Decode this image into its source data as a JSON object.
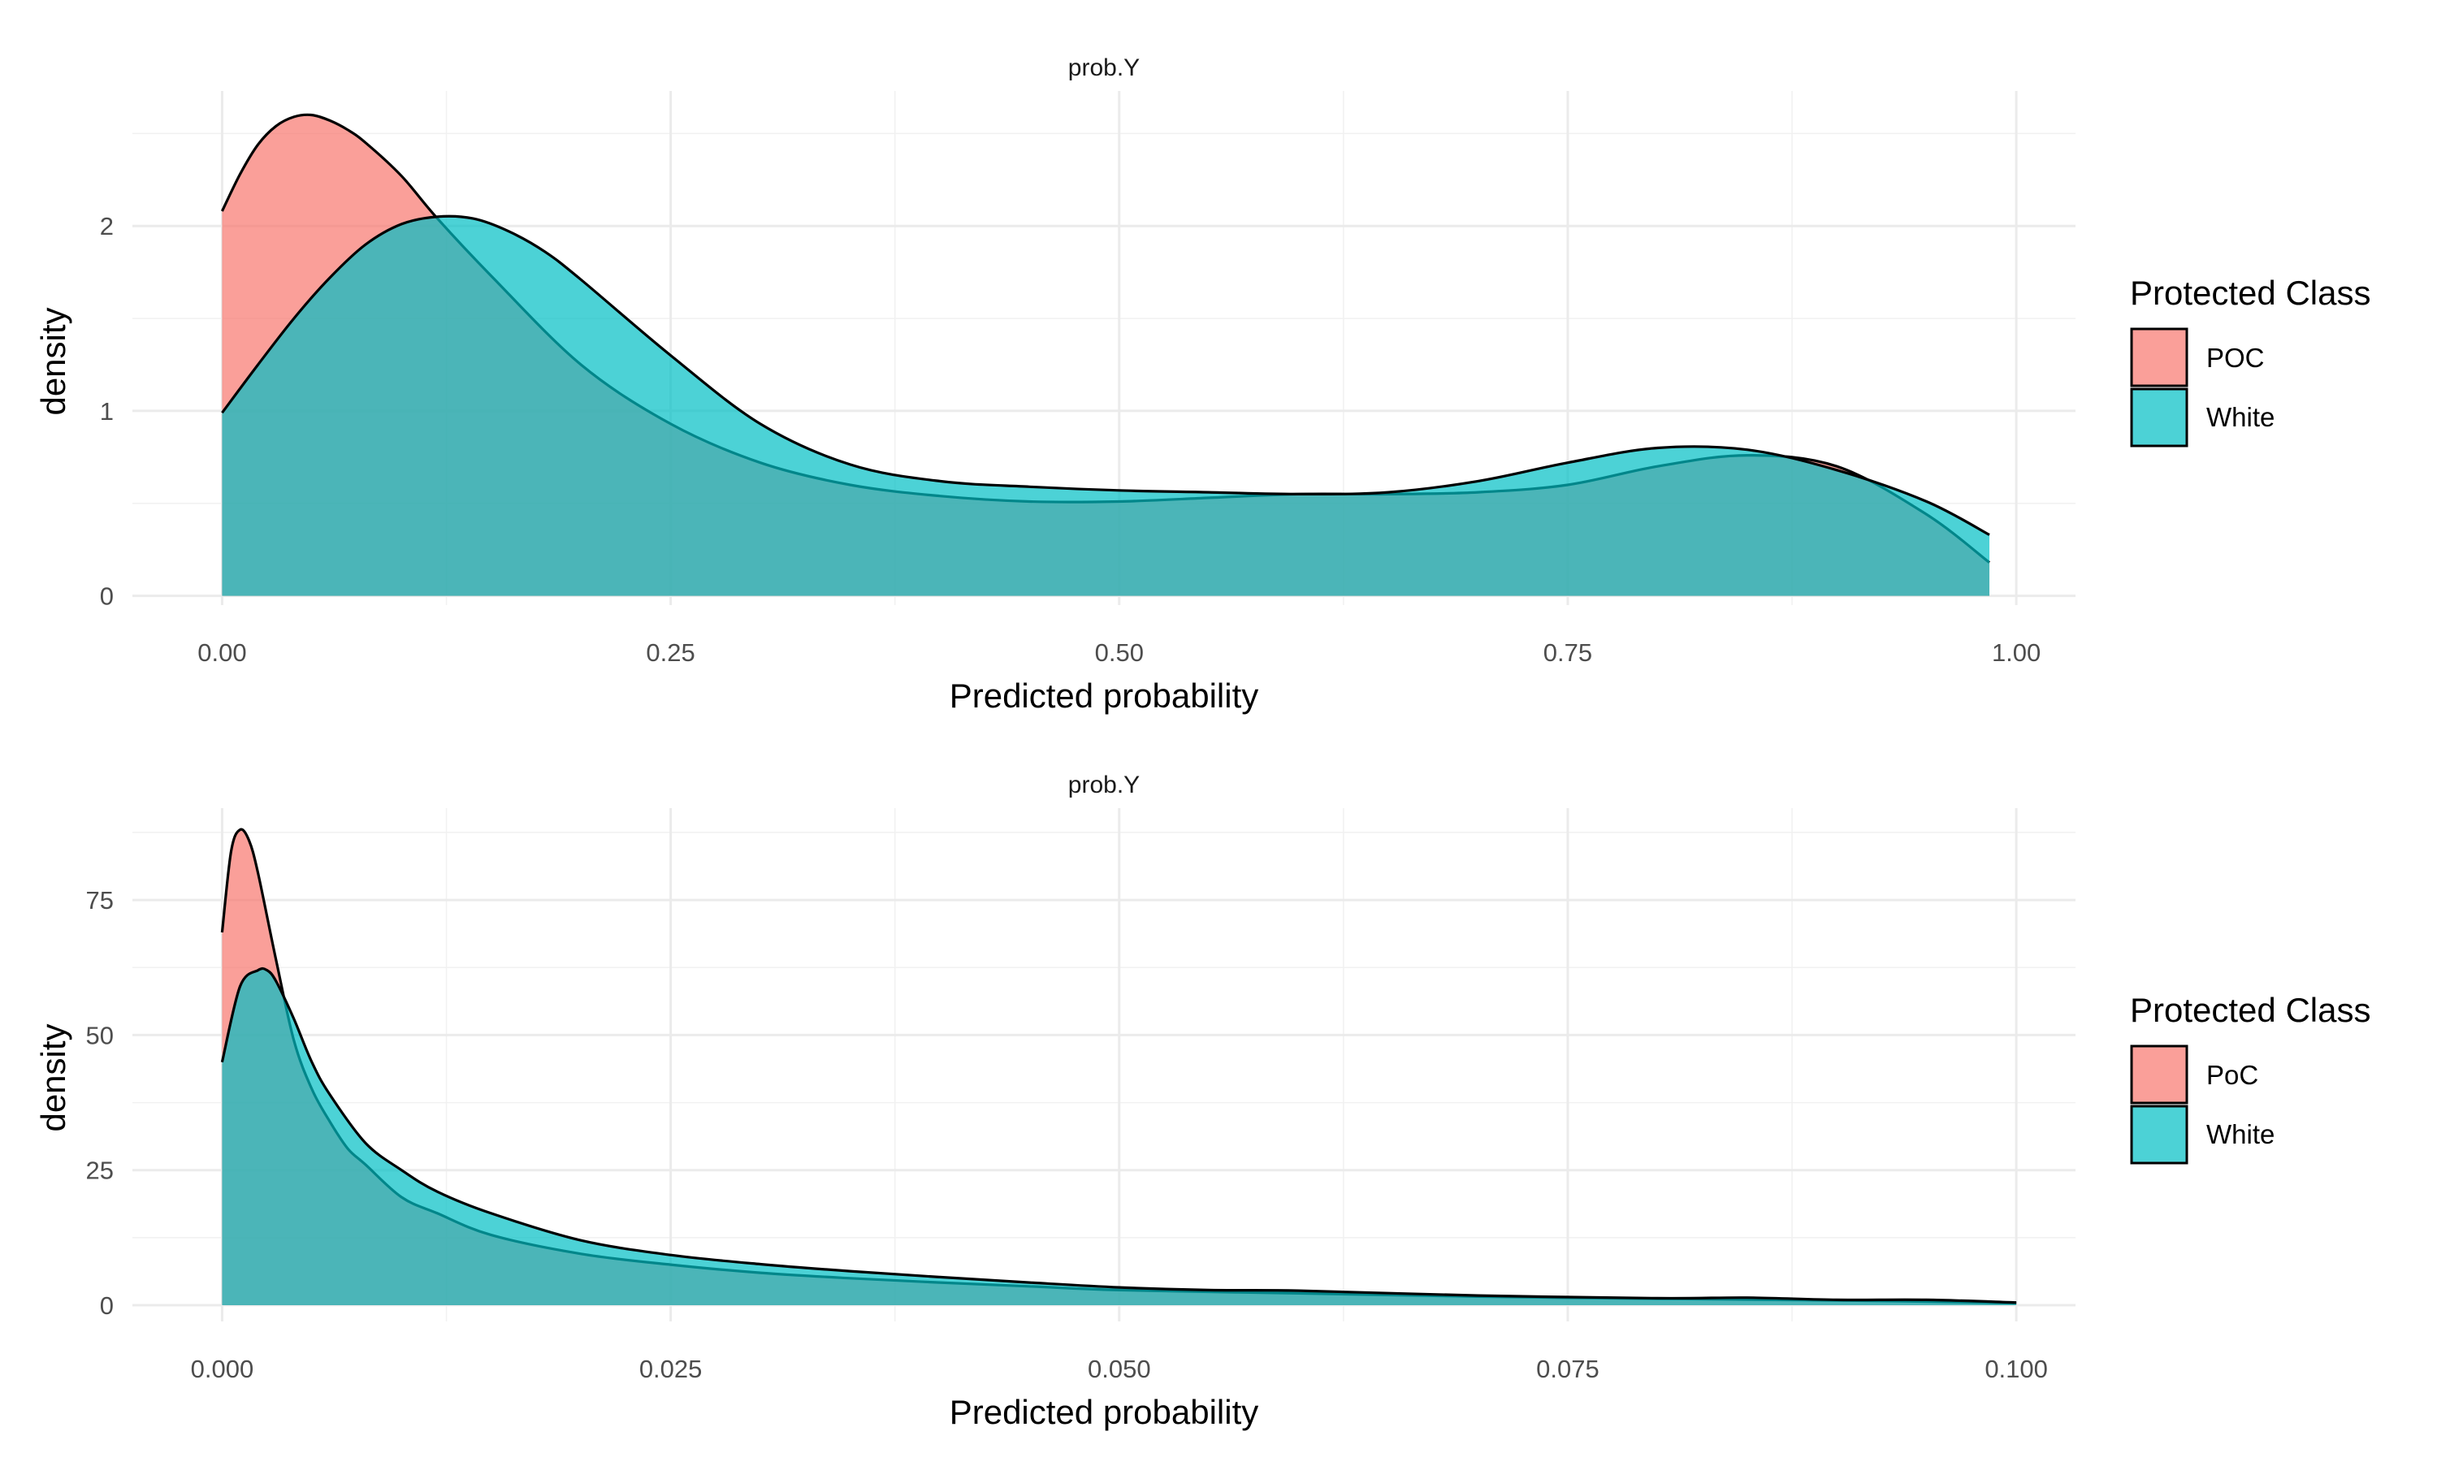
{
  "chart_data": [
    {
      "type": "area",
      "strip_title": "prob.Y",
      "xlabel": "Predicted probability",
      "ylabel": "density",
      "xlim": [
        -0.05,
        1.033
      ],
      "ylim": [
        -0.05,
        2.73
      ],
      "x_ticks": [
        0.0,
        0.25,
        0.5,
        0.75,
        1.0
      ],
      "x_tick_labels": [
        "0.00",
        "0.25",
        "0.50",
        "0.75",
        "1.00"
      ],
      "y_ticks": [
        0,
        1,
        2
      ],
      "y_tick_labels": [
        "0",
        "1",
        "2"
      ],
      "grid": true,
      "legend": {
        "title": "Protected Class",
        "position": "right"
      },
      "series": [
        {
          "name": "POC",
          "color": "#F8766D",
          "x": [
            0.0,
            0.01,
            0.02,
            0.03,
            0.04,
            0.05,
            0.06,
            0.07,
            0.08,
            0.1,
            0.12,
            0.15,
            0.2,
            0.25,
            0.3,
            0.35,
            0.4,
            0.45,
            0.5,
            0.55,
            0.6,
            0.65,
            0.7,
            0.75,
            0.8,
            0.85,
            0.9,
            0.95,
            0.985
          ],
          "values": [
            2.08,
            2.28,
            2.44,
            2.54,
            2.59,
            2.6,
            2.57,
            2.52,
            2.45,
            2.27,
            2.04,
            1.73,
            1.25,
            0.93,
            0.72,
            0.6,
            0.54,
            0.51,
            0.51,
            0.53,
            0.55,
            0.55,
            0.56,
            0.6,
            0.7,
            0.76,
            0.7,
            0.44,
            0.18
          ]
        },
        {
          "name": "White",
          "color": "#00BFC4",
          "x": [
            0.0,
            0.02,
            0.04,
            0.06,
            0.08,
            0.1,
            0.12,
            0.14,
            0.16,
            0.18,
            0.2,
            0.25,
            0.3,
            0.35,
            0.4,
            0.45,
            0.5,
            0.55,
            0.6,
            0.65,
            0.7,
            0.75,
            0.8,
            0.85,
            0.9,
            0.95,
            0.985
          ],
          "values": [
            0.99,
            1.25,
            1.5,
            1.72,
            1.9,
            2.01,
            2.05,
            2.04,
            1.97,
            1.86,
            1.71,
            1.3,
            0.93,
            0.71,
            0.62,
            0.59,
            0.57,
            0.56,
            0.55,
            0.56,
            0.62,
            0.72,
            0.8,
            0.79,
            0.68,
            0.51,
            0.33
          ]
        }
      ]
    },
    {
      "type": "area",
      "strip_title": "prob.Y",
      "xlabel": "Predicted probability",
      "ylabel": "density",
      "xlim": [
        -0.005,
        0.1033
      ],
      "ylim": [
        -3,
        92
      ],
      "x_ticks": [
        0.0,
        0.025,
        0.05,
        0.075,
        0.1
      ],
      "x_tick_labels": [
        "0.000",
        "0.025",
        "0.050",
        "0.075",
        "0.100"
      ],
      "y_ticks": [
        0,
        25,
        50,
        75
      ],
      "y_tick_labels": [
        "0",
        "25",
        "50",
        "75"
      ],
      "grid": true,
      "legend": {
        "title": "Protected Class",
        "position": "right"
      },
      "series": [
        {
          "name": "PoC",
          "color": "#F8766D",
          "x": [
            0.0,
            0.0005,
            0.001,
            0.0015,
            0.002,
            0.003,
            0.004,
            0.005,
            0.006,
            0.007,
            0.008,
            0.01,
            0.012,
            0.015,
            0.02,
            0.025,
            0.03,
            0.035,
            0.04,
            0.045,
            0.05,
            0.06,
            0.07,
            0.08,
            0.09,
            0.1
          ],
          "values": [
            69,
            84,
            88,
            86,
            80,
            64,
            49,
            40,
            34,
            29,
            26,
            20,
            17,
            13,
            9.5,
            7.5,
            6.0,
            5.0,
            4.2,
            3.5,
            2.8,
            2.2,
            1.6,
            1.2,
            0.9,
            0.4
          ]
        },
        {
          "name": "White",
          "color": "#00BFC4",
          "x": [
            0.0,
            0.001,
            0.002,
            0.0025,
            0.003,
            0.004,
            0.005,
            0.006,
            0.008,
            0.01,
            0.012,
            0.015,
            0.02,
            0.025,
            0.03,
            0.035,
            0.04,
            0.045,
            0.05,
            0.055,
            0.06,
            0.07,
            0.08,
            0.085,
            0.09,
            0.095,
            0.1
          ],
          "values": [
            45,
            59,
            62,
            62,
            60,
            53,
            45,
            39,
            30,
            25,
            21,
            17,
            12,
            9.3,
            7.6,
            6.3,
            5.2,
            4.2,
            3.3,
            2.8,
            2.7,
            1.8,
            1.3,
            1.4,
            1.0,
            1.0,
            0.5
          ]
        }
      ]
    }
  ]
}
